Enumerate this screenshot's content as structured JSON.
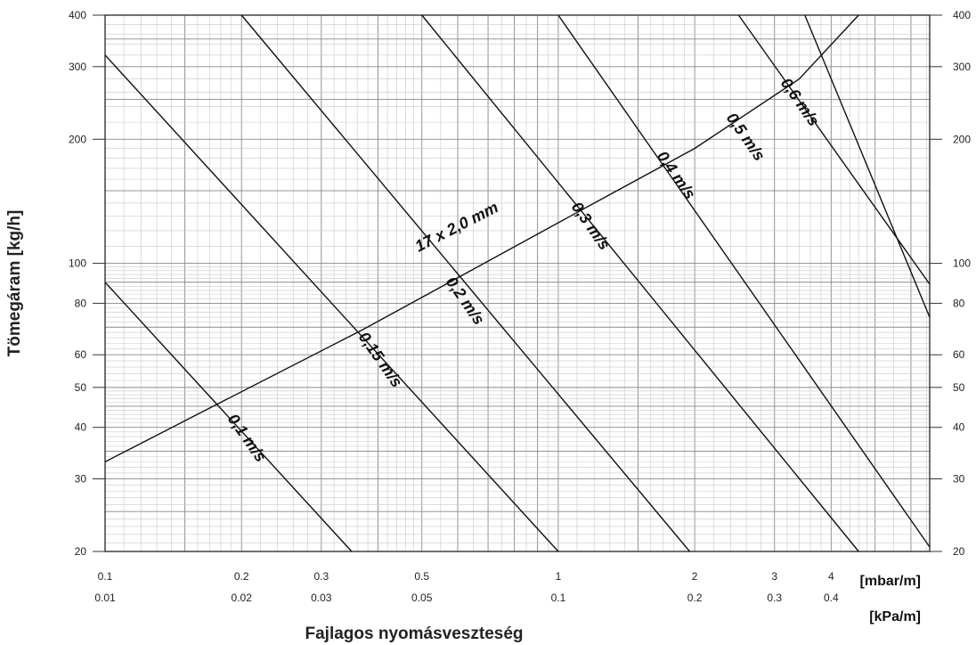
{
  "chart_data": {
    "type": "line",
    "x_scale": "log",
    "y_scale": "log",
    "grid": true,
    "xlim": [
      0.1,
      6.6
    ],
    "ylim": [
      20,
      400
    ],
    "ylabel": "Tömegáram [kg/h]",
    "xlabel": "Fajlagos nyomásveszteség",
    "x_unit_primary": "[mbar/m]",
    "x_unit_secondary": "[kPa/m]",
    "x_ticks_primary": [
      "0.1",
      "0.2",
      "0.3",
      "0.5",
      "1",
      "2",
      "3",
      "4"
    ],
    "x_ticks_secondary": [
      "0.01",
      "0.02",
      "0.03",
      "0.05",
      "0.1",
      "0.2",
      "0.3",
      "0.4"
    ],
    "x_tick_values": [
      0.1,
      0.2,
      0.3,
      0.5,
      1,
      2,
      3,
      4
    ],
    "y_ticks": [
      "20",
      "30",
      "40",
      "50",
      "60",
      "80",
      "100",
      "200",
      "300",
      "400"
    ],
    "y_tick_values": [
      20,
      30,
      40,
      50,
      60,
      80,
      100,
      200,
      300,
      400
    ],
    "series": [
      {
        "name": "17 x 2,0 mm",
        "x": [
          0.1,
          0.18,
          0.37,
          0.63,
          1.2,
          2.0,
          3.4,
          4.6
        ],
        "y": [
          33,
          46,
          69,
          95,
          140,
          190,
          280,
          400
        ]
      },
      {
        "name": "0,1 m/s",
        "x": [
          0.1,
          0.35
        ],
        "y": [
          90,
          20
        ]
      },
      {
        "name": "0,15 m/s",
        "x": [
          0.1,
          1.0
        ],
        "y": [
          320,
          20
        ]
      },
      {
        "name": "0,2 m/s",
        "x": [
          0.2,
          1.95
        ],
        "y": [
          400,
          20
        ]
      },
      {
        "name": "0,3 m/s",
        "x": [
          0.5,
          4.6
        ],
        "y": [
          400,
          20
        ]
      },
      {
        "name": "0,4 m/s",
        "x": [
          1.0,
          6.6
        ],
        "y": [
          400,
          20.5
        ]
      },
      {
        "name": "0,5 m/s",
        "x": [
          2.5,
          6.6
        ],
        "y": [
          400,
          89
        ]
      },
      {
        "name": "0,6 m/s",
        "x": [
          3.5,
          6.6
        ],
        "y": [
          400,
          74
        ]
      }
    ]
  }
}
